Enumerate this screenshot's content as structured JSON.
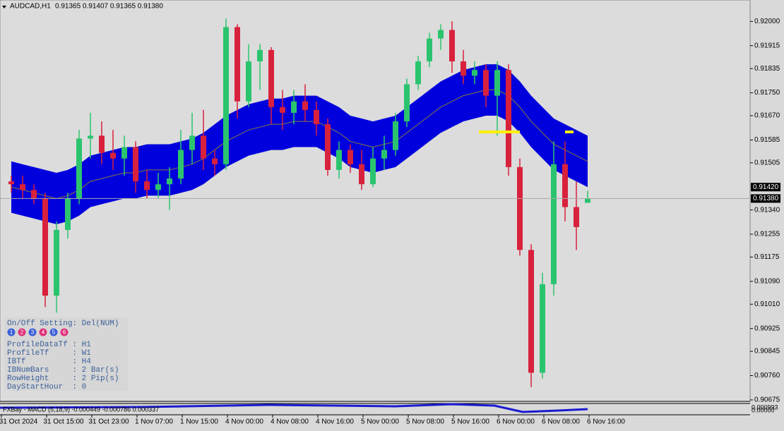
{
  "header": {
    "symbol": "AUDCAD,H1",
    "ohlc": "0.91365 0.91407 0.91365 0.91380"
  },
  "chart_data": {
    "type": "candlestick",
    "open": [
      0.9144,
      0.9143,
      0.9141,
      0.9138,
      0.9104,
      0.9127,
      0.9138,
      0.9159,
      0.916,
      0.9154,
      0.9152,
      0.9156,
      0.9144,
      0.9141,
      0.9143,
      0.9145,
      0.9155,
      0.916,
      0.9152,
      0.915,
      0.9198,
      0.9172,
      0.9186,
      0.919,
      0.917,
      0.9168,
      0.9172,
      0.9169,
      0.9164,
      0.9148,
      0.9155,
      0.915,
      0.9143,
      0.9152,
      0.9155,
      0.9165,
      0.9178,
      0.9186,
      0.9194,
      0.9197,
      0.9186,
      0.9181,
      0.9183,
      0.9174,
      0.9183,
      0.9149,
      0.912,
      0.9077,
      0.9108,
      0.915,
      0.9135,
      0.91365
    ],
    "high": [
      0.9146,
      0.9146,
      0.9143,
      0.914,
      0.913,
      0.914,
      0.9162,
      0.9168,
      0.9165,
      0.9162,
      0.916,
      0.9158,
      0.9148,
      0.9147,
      0.9149,
      0.9162,
      0.9168,
      0.9169,
      0.9155,
      0.9201,
      0.9199,
      0.9192,
      0.9192,
      0.9191,
      0.9176,
      0.9176,
      0.9178,
      0.9172,
      0.9166,
      0.9158,
      0.9157,
      0.9155,
      0.9156,
      0.916,
      0.9168,
      0.918,
      0.9188,
      0.9196,
      0.9199,
      0.92,
      0.919,
      0.9186,
      0.9185,
      0.9186,
      0.9185,
      0.9152,
      0.9122,
      0.9112,
      0.9158,
      0.9158,
      0.9144,
      0.91407
    ],
    "low": [
      0.914,
      0.9138,
      0.9136,
      0.91,
      0.9098,
      0.9124,
      0.9136,
      0.9152,
      0.915,
      0.9148,
      0.9146,
      0.914,
      0.9138,
      0.9138,
      0.9134,
      0.9143,
      0.915,
      0.9148,
      0.9146,
      0.9148,
      0.9166,
      0.917,
      0.9176,
      0.9164,
      0.9162,
      0.9164,
      0.9165,
      0.916,
      0.9146,
      0.9145,
      0.9147,
      0.9141,
      0.9142,
      0.9148,
      0.9153,
      0.9163,
      0.9176,
      0.9184,
      0.919,
      0.9182,
      0.9178,
      0.9178,
      0.917,
      0.916,
      0.9146,
      0.9118,
      0.9072,
      0.9075,
      0.9104,
      0.913,
      0.912,
      0.91365
    ],
    "close": [
      0.9143,
      0.9141,
      0.9138,
      0.9104,
      0.9127,
      0.9138,
      0.9159,
      0.916,
      0.9154,
      0.9152,
      0.9156,
      0.9144,
      0.9141,
      0.9143,
      0.9145,
      0.9155,
      0.916,
      0.9152,
      0.915,
      0.9198,
      0.9172,
      0.9186,
      0.919,
      0.917,
      0.9168,
      0.9172,
      0.9169,
      0.9164,
      0.9148,
      0.9155,
      0.915,
      0.9143,
      0.9152,
      0.9155,
      0.9165,
      0.9178,
      0.9186,
      0.9194,
      0.9197,
      0.9186,
      0.9181,
      0.9183,
      0.9174,
      0.9183,
      0.9149,
      0.912,
      0.9077,
      0.9108,
      0.915,
      0.9135,
      0.9128,
      0.9138
    ],
    "up_color": "#2bc46e",
    "down_color": "#d8213c",
    "envelope": {
      "color": "#0000dc",
      "mid_color": "#8a7a3a",
      "upper": [
        0.9151,
        0.915,
        0.9149,
        0.9148,
        0.9147,
        0.9148,
        0.915,
        0.9153,
        0.9154,
        0.9155,
        0.9156,
        0.9156,
        0.9157,
        0.9157,
        0.9157,
        0.9158,
        0.9159,
        0.9161,
        0.9164,
        0.9167,
        0.9169,
        0.9171,
        0.9172,
        0.9173,
        0.9173,
        0.9174,
        0.9174,
        0.9174,
        0.9172,
        0.917,
        0.9167,
        0.9166,
        0.9165,
        0.9166,
        0.9167,
        0.917,
        0.9173,
        0.9176,
        0.9179,
        0.9181,
        0.9183,
        0.9184,
        0.9185,
        0.9185,
        0.9183,
        0.9179,
        0.9174,
        0.917,
        0.9166,
        0.9164,
        0.9162,
        0.916
      ],
      "mid": [
        0.9142,
        0.9141,
        0.914,
        0.9139,
        0.9138,
        0.9139,
        0.9141,
        0.9144,
        0.9145,
        0.9146,
        0.9147,
        0.9147,
        0.9148,
        0.9148,
        0.9148,
        0.9149,
        0.915,
        0.9152,
        0.9155,
        0.9158,
        0.916,
        0.9162,
        0.9163,
        0.9164,
        0.9164,
        0.9165,
        0.9165,
        0.9165,
        0.9163,
        0.9161,
        0.9158,
        0.9157,
        0.9156,
        0.9157,
        0.9158,
        0.9161,
        0.9164,
        0.9167,
        0.917,
        0.9172,
        0.9174,
        0.9175,
        0.9176,
        0.9176,
        0.9174,
        0.917,
        0.9165,
        0.9161,
        0.9157,
        0.9155,
        0.9153,
        0.9151
      ],
      "lower": [
        0.9133,
        0.9132,
        0.9131,
        0.913,
        0.9129,
        0.913,
        0.9132,
        0.9135,
        0.9136,
        0.9137,
        0.9138,
        0.9138,
        0.9139,
        0.9139,
        0.9139,
        0.914,
        0.9141,
        0.9143,
        0.9146,
        0.9149,
        0.9151,
        0.9153,
        0.9154,
        0.9155,
        0.9155,
        0.9156,
        0.9156,
        0.9156,
        0.9154,
        0.9152,
        0.9149,
        0.9148,
        0.9147,
        0.9148,
        0.9149,
        0.9152,
        0.9155,
        0.9158,
        0.9161,
        0.9163,
        0.9165,
        0.9166,
        0.9167,
        0.9167,
        0.9165,
        0.9161,
        0.9156,
        0.9152,
        0.9148,
        0.9146,
        0.9144,
        0.9142
      ]
    },
    "ylim": [
      0.9066,
      0.9207
    ],
    "yticks": [
      {
        "value": 0.92,
        "label": "0.92000"
      },
      {
        "value": 0.91915,
        "label": "0.91915"
      },
      {
        "value": 0.91835,
        "label": "0.91835"
      },
      {
        "value": 0.9175,
        "label": "0.91750"
      },
      {
        "value": 0.9167,
        "label": "0.91670"
      },
      {
        "value": 0.91585,
        "label": "0.91585"
      },
      {
        "value": 0.91505,
        "label": "0.91505"
      },
      {
        "value": 0.9134,
        "label": "0.91340"
      },
      {
        "value": 0.91255,
        "label": "0.91255"
      },
      {
        "value": 0.91175,
        "label": "0.91175"
      },
      {
        "value": 0.9109,
        "label": "0.91090"
      },
      {
        "value": 0.9101,
        "label": "0.91010"
      },
      {
        "value": 0.90925,
        "label": "0.90925"
      },
      {
        "value": 0.90845,
        "label": "0.90845"
      },
      {
        "value": 0.9076,
        "label": "0.90760"
      },
      {
        "value": 0.90675,
        "label": "0.90675"
      }
    ],
    "price_labels": [
      {
        "value": 0.9142,
        "label": "0.91420"
      },
      {
        "value": 0.9138,
        "label": "0.91380"
      }
    ],
    "xtick_labels": [
      "31 Oct 2024",
      "31 Oct 15:00",
      "31 Oct 23:00",
      "1 Nov 07:00",
      "1 Nov 15:00",
      "4 Nov 00:00",
      "4 Nov 08:00",
      "4 Nov 16:00",
      "5 Nov 00:00",
      "5 Nov 08:00",
      "5 Nov 16:00",
      "6 Nov 00:00",
      "6 Nov 08:00",
      "6 Nov 16:00"
    ]
  },
  "panel": {
    "title": "On/Off Setting: Del(NUM)",
    "buttons": [
      1,
      2,
      3,
      4,
      5,
      6
    ],
    "rows": [
      "ProfileDataTf : H1",
      "ProfileTf     : W1",
      "IBTf          : H4",
      "IBNumBars     : 2 Bar(s)",
      "RowHeight     : 2 Pip(s)",
      "DayStartHour  : 0"
    ]
  },
  "macd": {
    "label": "FXBay - MACD (5,18,9) -0.000449 -0.000786 0.000337",
    "axis_labels": [
      "0.000993",
      "0.00000"
    ]
  }
}
